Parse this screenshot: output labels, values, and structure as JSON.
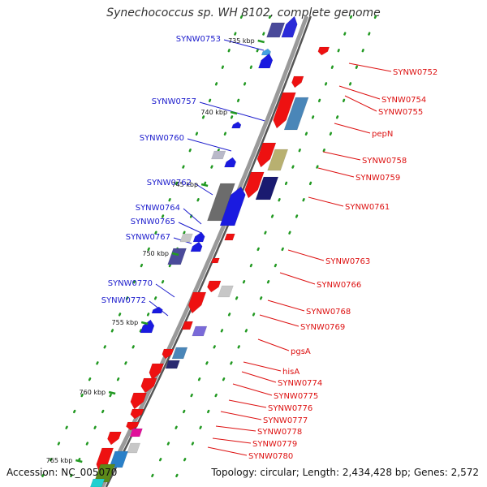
{
  "title": "Synechococcus sp. WH 8102, complete genome",
  "footer": {
    "accession": "Accession: NC_005070",
    "summary": "Topology: circular; Length: 2,434,428 bp; Genes: 2,572"
  },
  "colors": {
    "left_label": "#1a1acc",
    "right_label": "#dd1111",
    "backbone": "#777777",
    "tick": "#229922"
  },
  "ticks": [
    {
      "label": "735 kbp"
    },
    {
      "label": "740 kbp"
    },
    {
      "label": "745 kbp"
    },
    {
      "label": "750 kbp"
    },
    {
      "label": "755 kbp"
    },
    {
      "label": "760 kbp"
    },
    {
      "label": "765 kbp"
    }
  ],
  "left_labels": [
    "SYNW0753",
    "SYNW0757",
    "SYNW0760",
    "SYNW0762",
    "SYNW0764",
    "SYNW0765",
    "SYNW0767",
    "SYNW0770",
    "SYNW0772"
  ],
  "right_labels": [
    "SYNW0752",
    "SYNW0754",
    "SYNW0755",
    "pepN",
    "SYNW0758",
    "SYNW0759",
    "SYNW0761",
    "SYNW0763",
    "SYNW0766",
    "SYNW0768",
    "SYNW0769",
    "pgsA",
    "hisA",
    "SYNW0774",
    "SYNW0775",
    "SYNW0776",
    "SYNW0777",
    "SYNW0778",
    "SYNW0779",
    "SYNW0780"
  ]
}
